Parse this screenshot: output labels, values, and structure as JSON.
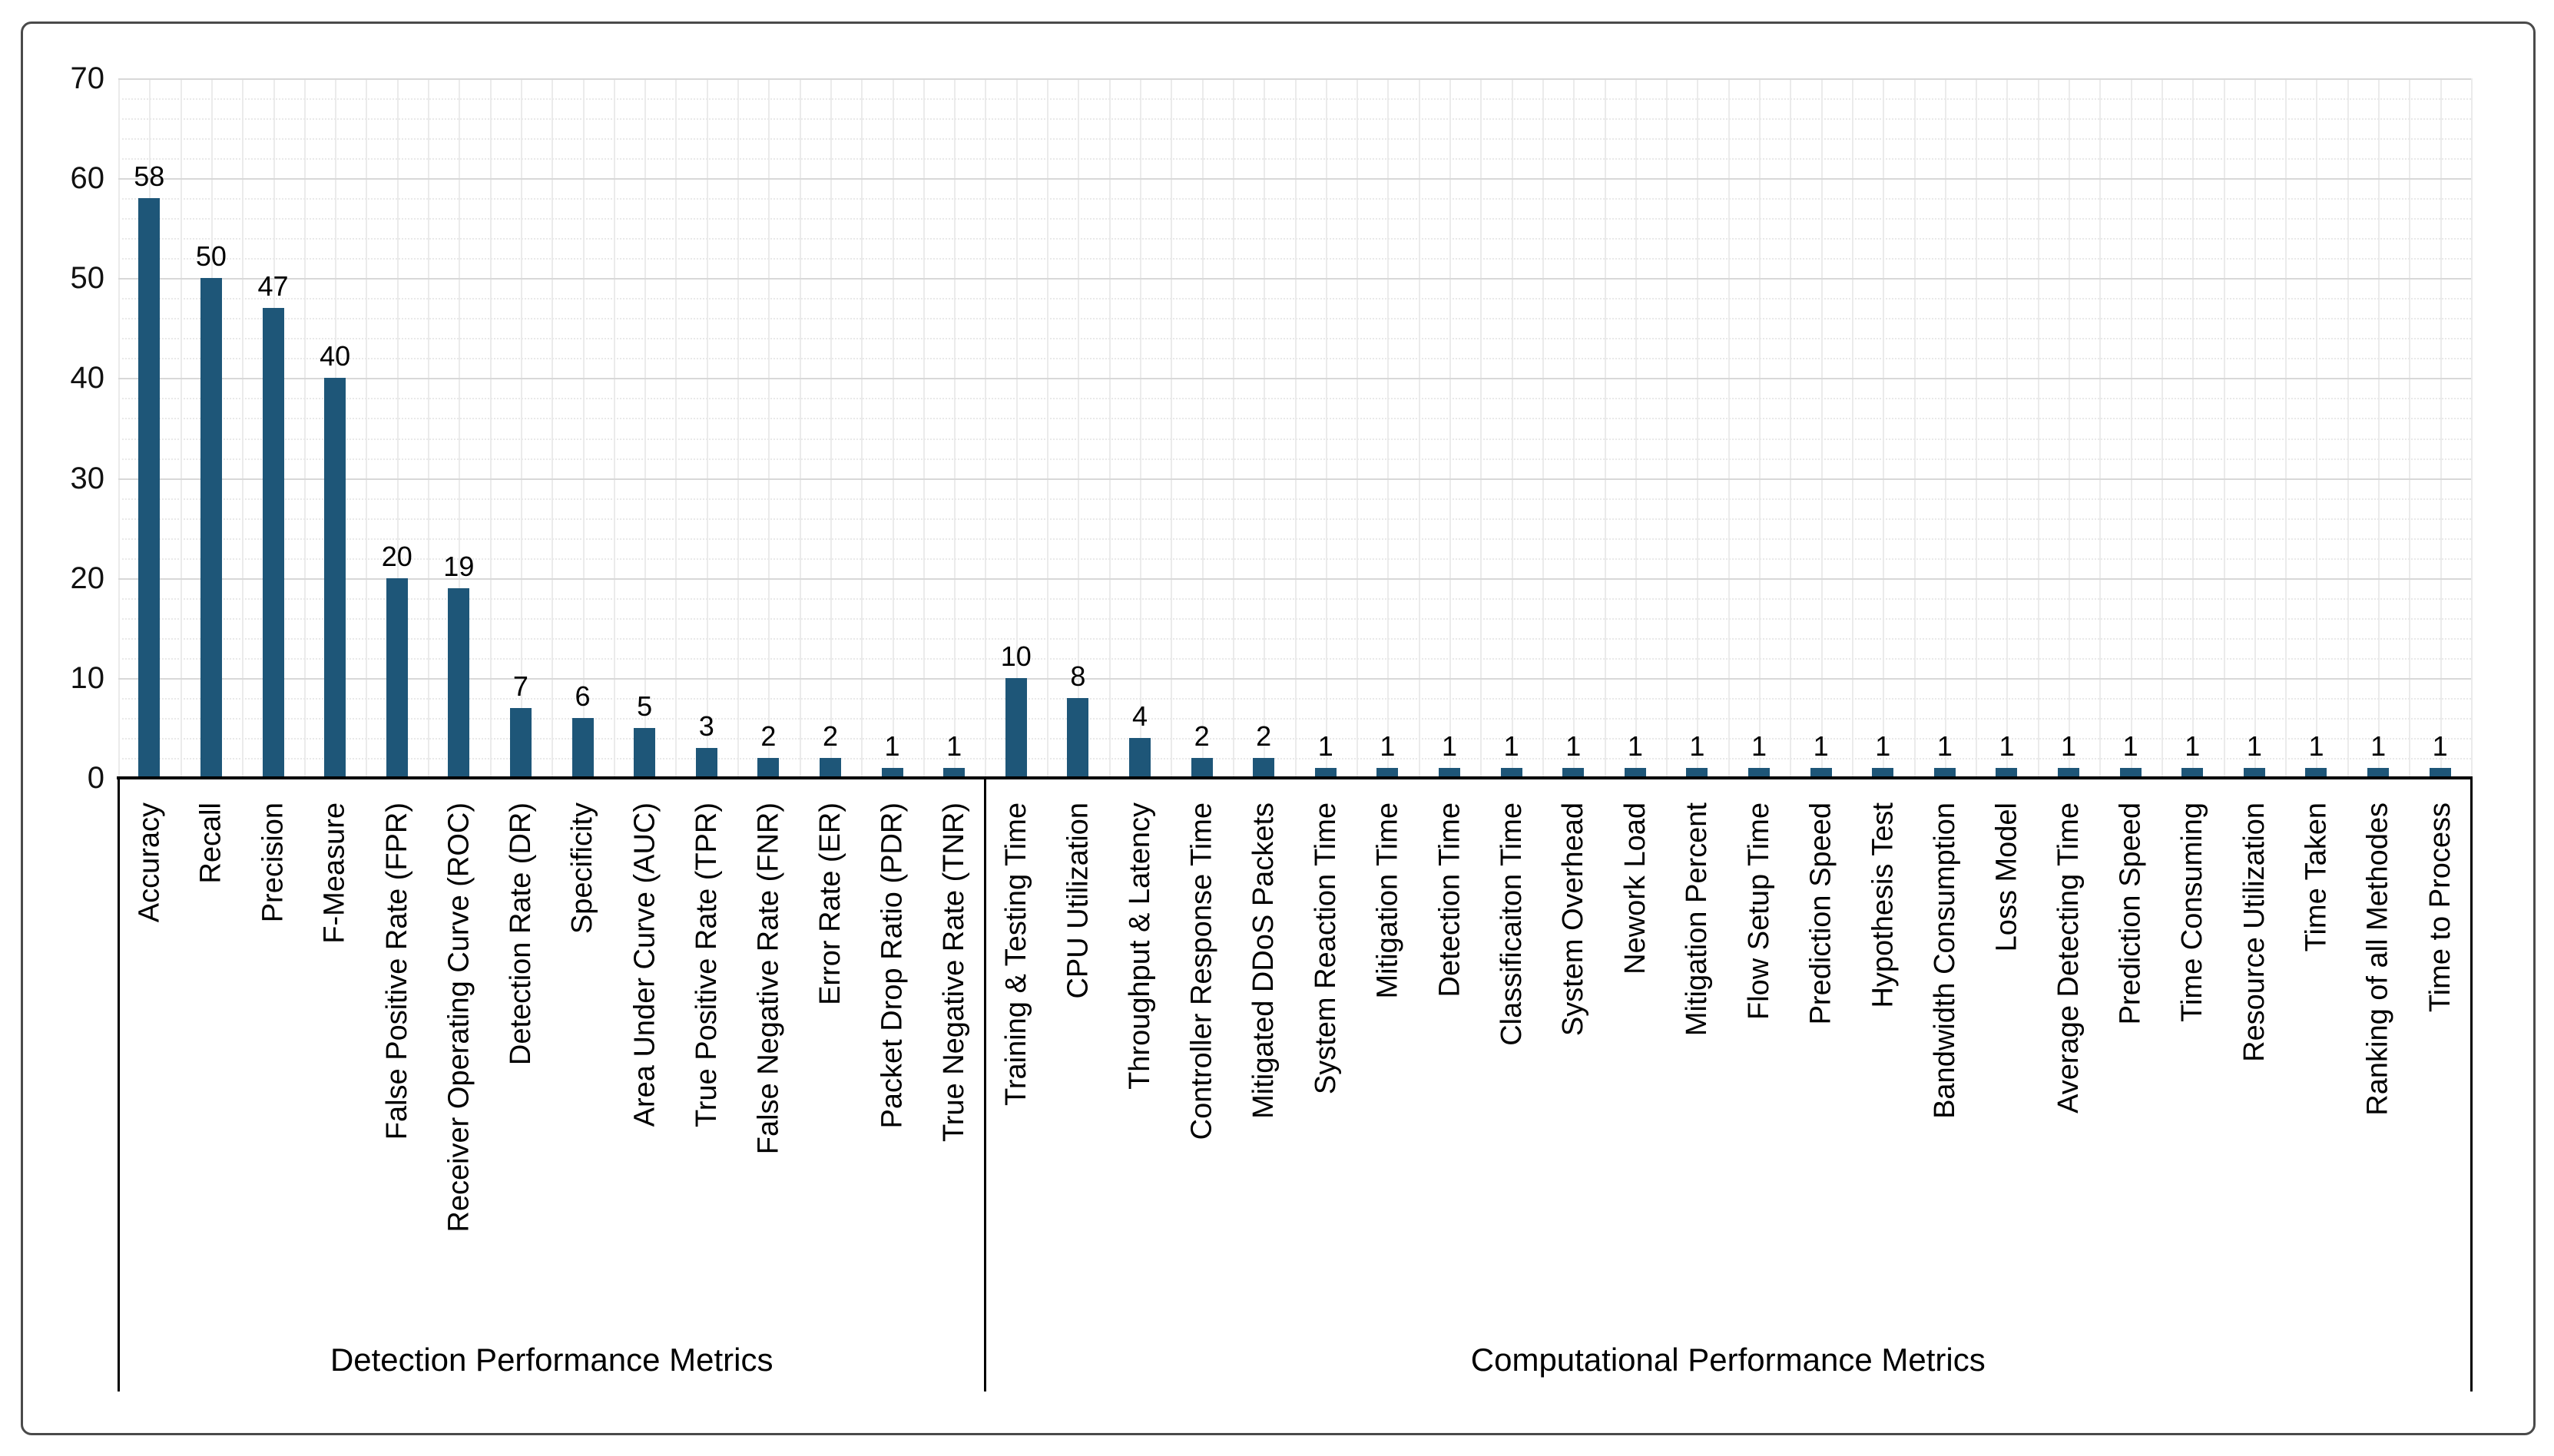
{
  "figure": {
    "background_color": "#ffffff",
    "frame_border_color": "#4a4a4a",
    "bar_color": "#1e5678",
    "axis_line_color": "#000000",
    "major_gridline_color": "#d8d8d8",
    "minor_gridline_color": "#e9e9e9"
  },
  "chart_data": {
    "type": "bar",
    "title": "",
    "xlabel": "",
    "ylabel": "",
    "ylim": [
      0,
      70
    ],
    "y_ticks": [
      0,
      10,
      20,
      30,
      40,
      50,
      60,
      70
    ],
    "y_minor_unit": 2,
    "grid": "horizontal major + minor, vertical light category gridlines",
    "legend_position": "none",
    "bar_value_labels": "shown above each bar",
    "groups": [
      {
        "label": "Detection Performance Metrics",
        "categories": [
          "Accuracy",
          "Recall",
          "Precision",
          "F-Measure",
          "False Positive Rate (FPR)",
          "Receiver Operating Curve (ROC)",
          "Detection Rate (DR)",
          "Specificity",
          "Area Under Curve (AUC)",
          "True Positive Rate (TPR)",
          "False Negative Rate (FNR)",
          "Error Rate (ER)",
          "Packet Drop Ratio (PDR)",
          "True Negative Rate (TNR)"
        ],
        "values": [
          58,
          50,
          47,
          40,
          20,
          19,
          7,
          6,
          5,
          3,
          2,
          2,
          1,
          1
        ]
      },
      {
        "label": "Computational Performance Metrics",
        "categories": [
          "Training & Testing Time",
          "CPU Utilization",
          "Throughput & Latency",
          "Controller Response Time",
          "Mitigated DDoS Packets",
          "System Reaction Time",
          "Mitigation Time",
          "Detection Time",
          "Classificaiton Time",
          "System Overhead",
          "Nework Load",
          "Mitigation Percent",
          "Flow Setup Time",
          "Prediction Speed",
          "Hypothesis Test",
          "Bandwidth Consumption",
          "Loss Model",
          "Average Detecting Time",
          "Prediction Speed",
          "Time Consuming",
          "Resource Utilization",
          "Time Taken",
          "Ranking of all Methodes",
          "Time to Process"
        ],
        "values": [
          10,
          8,
          4,
          2,
          2,
          1,
          1,
          1,
          1,
          1,
          1,
          1,
          1,
          1,
          1,
          1,
          1,
          1,
          1,
          1,
          1,
          1,
          1,
          1
        ]
      }
    ]
  }
}
